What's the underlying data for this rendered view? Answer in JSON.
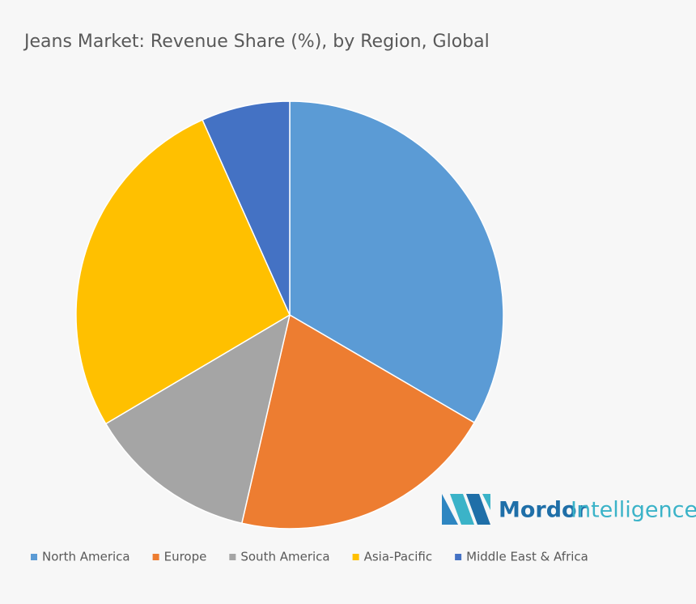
{
  "chart_data": {
    "type": "pie",
    "title": "Jeans Market: Revenue Share (%), by Region, Global",
    "categories": [
      "North America",
      "Europe",
      "South America",
      "Asia-Pacific",
      "Middle East & Africa"
    ],
    "values": [
      33.4,
      20.2,
      12.9,
      26.8,
      6.7
    ],
    "colors": [
      "#5b9bd5",
      "#ed7d31",
      "#a5a5a5",
      "#ffc000",
      "#4472c4"
    ],
    "legend": "bottom"
  },
  "logo": {
    "brand": "Mordor",
    "suffix": "Intelligence"
  }
}
